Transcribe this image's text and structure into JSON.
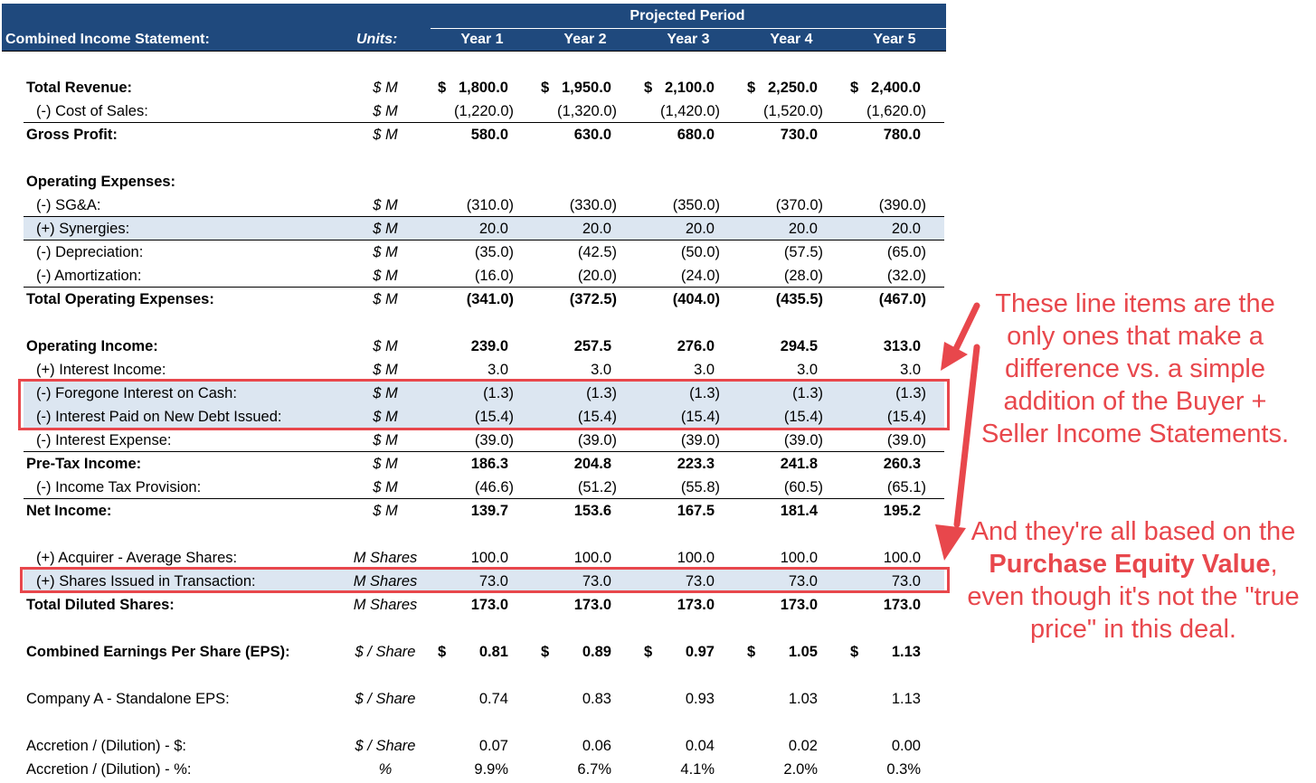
{
  "header": {
    "title": "Combined Income Statement:",
    "units_label": "Units:",
    "period_label": "Projected Period",
    "years": [
      "Year 1",
      "Year 2",
      "Year 3",
      "Year 4",
      "Year 5"
    ],
    "background_color": "#1f497d"
  },
  "rows": [
    {
      "label": "Total Revenue:",
      "unit": "$ M",
      "bold": true,
      "currency": "$",
      "values": [
        "1,800.0",
        "1,950.0",
        "2,100.0",
        "2,250.0",
        "2,400.0"
      ]
    },
    {
      "label": "(-) Cost of Sales:",
      "unit": "$ M",
      "values": [
        "(1,220.0)",
        "(1,320.0)",
        "(1,420.0)",
        "(1,520.0)",
        "(1,620.0)"
      ]
    },
    {
      "label": "Gross Profit:",
      "unit": "$ M",
      "bold": true,
      "values": [
        "580.0",
        "630.0",
        "680.0",
        "730.0",
        "780.0"
      ]
    },
    {
      "label": "Operating Expenses:",
      "bold": true
    },
    {
      "label": "(-) SG&A:",
      "unit": "$ M",
      "values": [
        "(310.0)",
        "(330.0)",
        "(350.0)",
        "(370.0)",
        "(390.0)"
      ]
    },
    {
      "label": "(+) Synergies:",
      "unit": "$ M",
      "shaded": true,
      "values": [
        "20.0",
        "20.0",
        "20.0",
        "20.0",
        "20.0"
      ]
    },
    {
      "label": "(-) Depreciation:",
      "unit": "$ M",
      "values": [
        "(35.0)",
        "(42.5)",
        "(50.0)",
        "(57.5)",
        "(65.0)"
      ]
    },
    {
      "label": "(-) Amortization:",
      "unit": "$ M",
      "values": [
        "(16.0)",
        "(20.0)",
        "(24.0)",
        "(28.0)",
        "(32.0)"
      ]
    },
    {
      "label": "Total Operating Expenses:",
      "unit": "$ M",
      "bold": true,
      "values": [
        "(341.0)",
        "(372.5)",
        "(404.0)",
        "(435.5)",
        "(467.0)"
      ]
    },
    {
      "label": "Operating Income:",
      "unit": "$ M",
      "bold": true,
      "values": [
        "239.0",
        "257.5",
        "276.0",
        "294.5",
        "313.0"
      ]
    },
    {
      "label": "(+) Interest Income:",
      "unit": "$ M",
      "values": [
        "3.0",
        "3.0",
        "3.0",
        "3.0",
        "3.0"
      ]
    },
    {
      "label": "(-) Foregone Interest on Cash:",
      "unit": "$ M",
      "shaded": true,
      "highlighted": true,
      "values": [
        "(1.3)",
        "(1.3)",
        "(1.3)",
        "(1.3)",
        "(1.3)"
      ]
    },
    {
      "label": "(-) Interest Paid on New Debt Issued:",
      "unit": "$ M",
      "shaded": true,
      "highlighted": true,
      "values": [
        "(15.4)",
        "(15.4)",
        "(15.4)",
        "(15.4)",
        "(15.4)"
      ]
    },
    {
      "label": "(-) Interest Expense:",
      "unit": "$ M",
      "values": [
        "(39.0)",
        "(39.0)",
        "(39.0)",
        "(39.0)",
        "(39.0)"
      ]
    },
    {
      "label": "Pre-Tax Income:",
      "unit": "$ M",
      "bold": true,
      "values": [
        "186.3",
        "204.8",
        "223.3",
        "241.8",
        "260.3"
      ]
    },
    {
      "label": "(-) Income Tax Provision:",
      "unit": "$ M",
      "values": [
        "(46.6)",
        "(51.2)",
        "(55.8)",
        "(60.5)",
        "(65.1)"
      ]
    },
    {
      "label": "Net Income:",
      "unit": "$ M",
      "bold": true,
      "values": [
        "139.7",
        "153.6",
        "167.5",
        "181.4",
        "195.2"
      ]
    },
    {
      "label": "(+) Acquirer - Average Shares:",
      "unit": "M Shares",
      "values": [
        "100.0",
        "100.0",
        "100.0",
        "100.0",
        "100.0"
      ]
    },
    {
      "label": "(+) Shares Issued in Transaction:",
      "unit": "M Shares",
      "shaded": true,
      "highlighted": true,
      "values": [
        "73.0",
        "73.0",
        "73.0",
        "73.0",
        "73.0"
      ]
    },
    {
      "label": "Total Diluted Shares:",
      "unit": "M Shares",
      "bold": true,
      "values": [
        "173.0",
        "173.0",
        "173.0",
        "173.0",
        "173.0"
      ]
    },
    {
      "label": "Combined Earnings Per Share (EPS):",
      "unit": "$ / Share",
      "bold": true,
      "currency": "$",
      "values": [
        "0.81",
        "0.89",
        "0.97",
        "1.05",
        "1.13"
      ]
    },
    {
      "label": "Company A - Standalone EPS:",
      "unit": "$ / Share",
      "values": [
        "0.74",
        "0.83",
        "0.93",
        "1.03",
        "1.13"
      ]
    },
    {
      "label": "Accretion / (Dilution) - $:",
      "unit": "$ / Share",
      "values": [
        "0.07",
        "0.06",
        "0.04",
        "0.02",
        "0.00"
      ]
    },
    {
      "label": "Accretion / (Dilution) - %:",
      "unit": "%",
      "values": [
        "9.9%",
        "6.7%",
        "4.1%",
        "2.0%",
        "0.3%"
      ]
    }
  ],
  "annotations": {
    "color": "#e8474c",
    "note1": "These line items are the only ones that make a difference vs. a simple addition of the Buyer + Seller Income Statements.",
    "note2_part1": "And they're all based on the ",
    "note2_bold": "Purchase Equity Value",
    "note2_part2": ", even though it's not the \"true price\" in this deal."
  },
  "shade_color": "#dce6f1"
}
